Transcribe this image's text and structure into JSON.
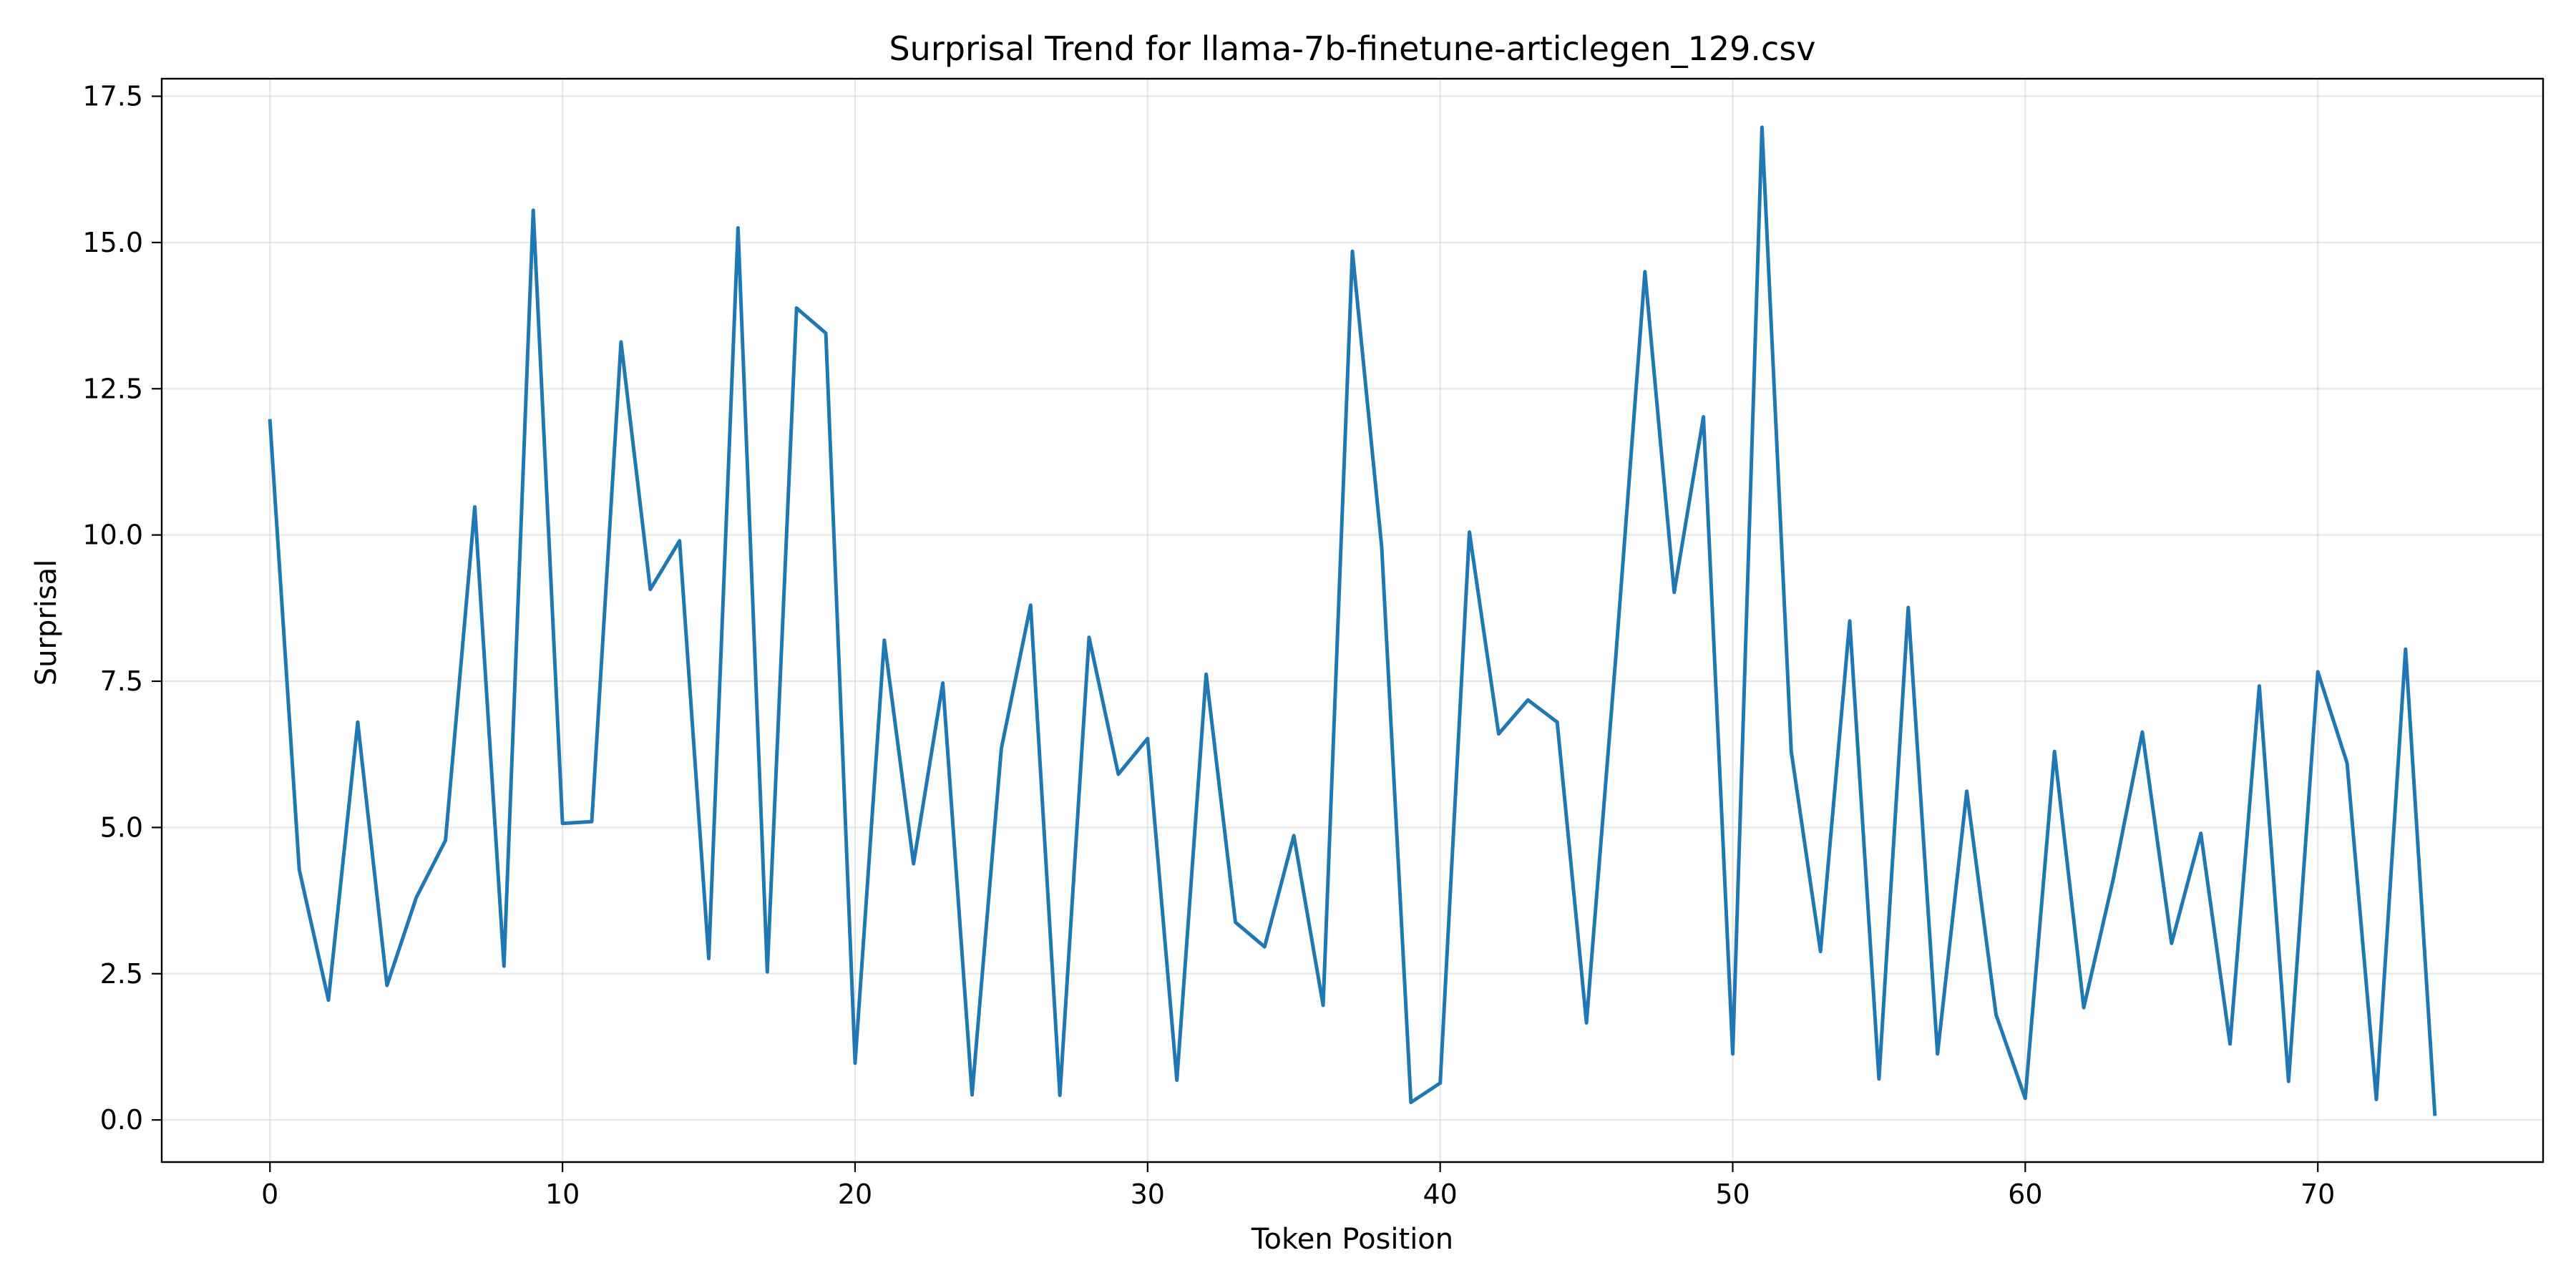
{
  "chart_data": {
    "type": "line",
    "title": "Surprisal Trend for llama-7b-finetune-articlegen_129.csv",
    "xlabel": "Token Position",
    "ylabel": "Surprisal",
    "xlim": [
      -3.7,
      77.7
    ],
    "ylim": [
      -0.72,
      17.8
    ],
    "xticks": [
      0,
      10,
      20,
      30,
      40,
      50,
      60,
      70
    ],
    "yticks": [
      0.0,
      2.5,
      5.0,
      7.5,
      10.0,
      12.5,
      15.0,
      17.5
    ],
    "xtick_labels": [
      "0",
      "10",
      "20",
      "30",
      "40",
      "50",
      "60",
      "70"
    ],
    "ytick_labels": [
      "0.0",
      "2.5",
      "5.0",
      "7.5",
      "10.0",
      "12.5",
      "15.0",
      "17.5"
    ],
    "grid": true,
    "line_color": "#1f77b4",
    "series": [
      {
        "x": [
          0,
          1,
          2,
          3,
          4,
          5,
          6,
          7,
          8,
          9,
          10,
          11,
          12,
          13,
          14,
          15,
          16,
          17,
          18,
          19,
          20,
          21,
          22,
          23,
          24,
          25,
          26,
          27,
          28,
          29,
          30,
          31,
          32,
          33,
          34,
          35,
          36,
          37,
          38,
          39,
          40,
          41,
          42,
          43,
          44,
          45,
          46,
          47,
          48,
          49,
          50,
          51,
          52,
          53,
          54,
          55,
          56,
          57,
          58,
          59,
          60,
          61,
          62,
          63,
          64,
          65,
          66,
          67,
          68,
          69,
          70,
          71,
          72,
          73,
          74
        ],
        "values": [
          11.95,
          4.28,
          2.05,
          6.8,
          2.3,
          3.8,
          4.78,
          10.48,
          2.63,
          15.55,
          5.07,
          5.1,
          13.3,
          9.07,
          9.9,
          2.76,
          15.25,
          2.53,
          13.88,
          13.45,
          0.97,
          8.2,
          4.38,
          7.47,
          0.43,
          6.35,
          8.8,
          0.42,
          8.25,
          5.91,
          6.52,
          0.68,
          7.62,
          3.38,
          2.96,
          4.86,
          1.96,
          14.85,
          9.8,
          0.3,
          0.63,
          10.05,
          6.6,
          7.18,
          6.8,
          1.66,
          7.9,
          14.5,
          9.02,
          12.02,
          1.13,
          16.97,
          6.3,
          2.88,
          8.53,
          0.7,
          8.76,
          1.13,
          5.62,
          1.8,
          0.37,
          6.3,
          1.92,
          4.1,
          6.63,
          3.02,
          4.9,
          1.3,
          7.42,
          0.66,
          7.66,
          6.1,
          0.35,
          8.05,
          0.1
        ]
      }
    ]
  }
}
